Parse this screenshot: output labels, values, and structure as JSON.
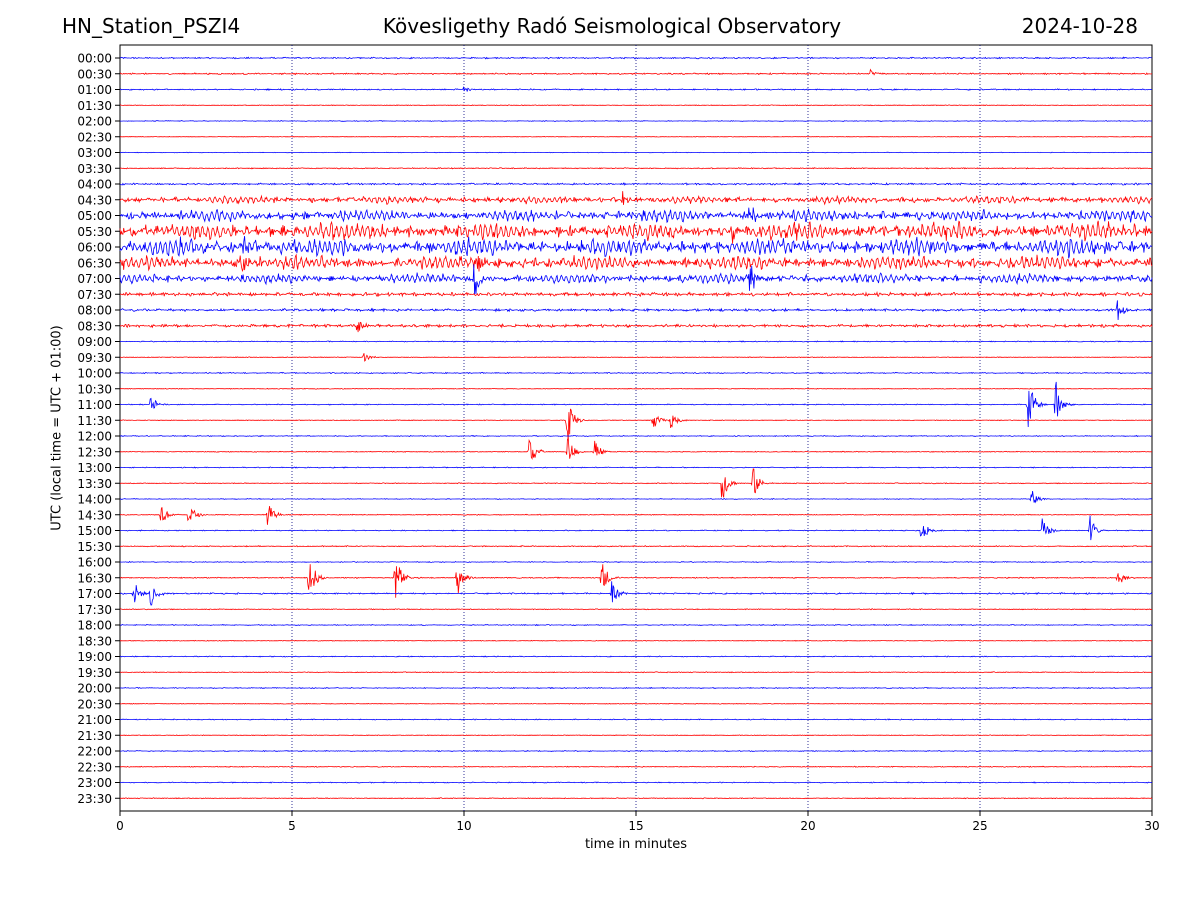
{
  "header": {
    "station": "HN_Station_PSZI4",
    "observatory": "Kövesligethy Radó Seismological Observatory",
    "date": "2024-10-28"
  },
  "chart_data": {
    "type": "line",
    "chart_kind": "helicorder",
    "xlabel": "time in minutes",
    "ylabel": "UTC (local time = UTC + 01:00)",
    "xlim": [
      0,
      30
    ],
    "x_ticks": [
      "0",
      "5",
      "10",
      "15",
      "20",
      "25",
      "30"
    ],
    "grid": "vertical dotted lines at each x tick",
    "colors": {
      "even_rows": "#0000ff",
      "odd_rows": "#ff0000",
      "grid": "#000080"
    },
    "rows": [
      "00:00",
      "00:30",
      "01:00",
      "01:30",
      "02:00",
      "02:30",
      "03:00",
      "03:30",
      "04:00",
      "04:30",
      "05:00",
      "05:30",
      "06:00",
      "06:30",
      "07:00",
      "07:30",
      "08:00",
      "08:30",
      "09:00",
      "09:30",
      "10:00",
      "10:30",
      "11:00",
      "11:30",
      "12:00",
      "12:30",
      "13:00",
      "13:30",
      "14:00",
      "14:30",
      "15:00",
      "15:30",
      "16:00",
      "16:30",
      "17:00",
      "17:30",
      "18:00",
      "18:30",
      "19:00",
      "19:30",
      "20:00",
      "20:30",
      "21:00",
      "21:30",
      "22:00",
      "22:30",
      "23:00",
      "23:30"
    ],
    "background_noise": [
      0.8,
      0.8,
      0.7,
      0.4,
      0.4,
      0.3,
      0.3,
      0.6,
      1.0,
      2.6,
      4.2,
      6.0,
      6.2,
      4.8,
      3.4,
      2.0,
      1.4,
      1.6,
      0.5,
      0.4,
      0.6,
      0.4,
      0.5,
      0.4,
      0.5,
      0.5,
      0.5,
      0.5,
      0.4,
      0.5,
      0.5,
      0.6,
      0.5,
      0.6,
      0.8,
      0.5,
      0.5,
      0.4,
      0.5,
      0.5,
      0.5,
      0.4,
      0.5,
      0.4,
      0.5,
      0.5,
      0.5,
      0.5
    ],
    "events": [
      {
        "row": 1,
        "minute": 21.8,
        "amplitude": 4
      },
      {
        "row": 2,
        "minute": 10.0,
        "amplitude": 4
      },
      {
        "row": 9,
        "minute": 14.6,
        "amplitude": 10
      },
      {
        "row": 10,
        "minute": 18.3,
        "amplitude": 18
      },
      {
        "row": 11,
        "minute": 17.8,
        "amplitude": 14
      },
      {
        "row": 12,
        "minute": 3.6,
        "amplitude": 12
      },
      {
        "row": 13,
        "minute": 3.5,
        "amplitude": 18
      },
      {
        "row": 13,
        "minute": 10.4,
        "amplitude": 12
      },
      {
        "row": 14,
        "minute": 10.3,
        "amplitude": 24
      },
      {
        "row": 14,
        "minute": 18.3,
        "amplitude": 18
      },
      {
        "row": 16,
        "minute": 29.0,
        "amplitude": 12
      },
      {
        "row": 17,
        "minute": 6.9,
        "amplitude": 10
      },
      {
        "row": 19,
        "minute": 7.1,
        "amplitude": 6
      },
      {
        "row": 22,
        "minute": 0.9,
        "amplitude": 10
      },
      {
        "row": 22,
        "minute": 26.4,
        "amplitude": 30
      },
      {
        "row": 22,
        "minute": 27.2,
        "amplitude": 26
      },
      {
        "row": 23,
        "minute": 13.0,
        "amplitude": 28
      },
      {
        "row": 23,
        "minute": 15.5,
        "amplitude": 10
      },
      {
        "row": 23,
        "minute": 16.0,
        "amplitude": 12
      },
      {
        "row": 25,
        "minute": 11.9,
        "amplitude": 22
      },
      {
        "row": 25,
        "minute": 13.0,
        "amplitude": 20
      },
      {
        "row": 25,
        "minute": 13.8,
        "amplitude": 12
      },
      {
        "row": 27,
        "minute": 17.5,
        "amplitude": 22
      },
      {
        "row": 27,
        "minute": 18.4,
        "amplitude": 18
      },
      {
        "row": 28,
        "minute": 26.5,
        "amplitude": 10
      },
      {
        "row": 29,
        "minute": 1.2,
        "amplitude": 12
      },
      {
        "row": 29,
        "minute": 2.0,
        "amplitude": 14
      },
      {
        "row": 29,
        "minute": 4.3,
        "amplitude": 14
      },
      {
        "row": 30,
        "minute": 23.3,
        "amplitude": 14
      },
      {
        "row": 30,
        "minute": 26.8,
        "amplitude": 16
      },
      {
        "row": 30,
        "minute": 28.2,
        "amplitude": 16
      },
      {
        "row": 33,
        "minute": 5.5,
        "amplitude": 28
      },
      {
        "row": 33,
        "minute": 8.0,
        "amplitude": 28
      },
      {
        "row": 33,
        "minute": 9.8,
        "amplitude": 22
      },
      {
        "row": 33,
        "minute": 14.0,
        "amplitude": 20
      },
      {
        "row": 33,
        "minute": 29.0,
        "amplitude": 10
      },
      {
        "row": 34,
        "minute": 0.4,
        "amplitude": 14
      },
      {
        "row": 34,
        "minute": 0.9,
        "amplitude": 16
      },
      {
        "row": 34,
        "minute": 14.3,
        "amplitude": 14
      }
    ]
  }
}
